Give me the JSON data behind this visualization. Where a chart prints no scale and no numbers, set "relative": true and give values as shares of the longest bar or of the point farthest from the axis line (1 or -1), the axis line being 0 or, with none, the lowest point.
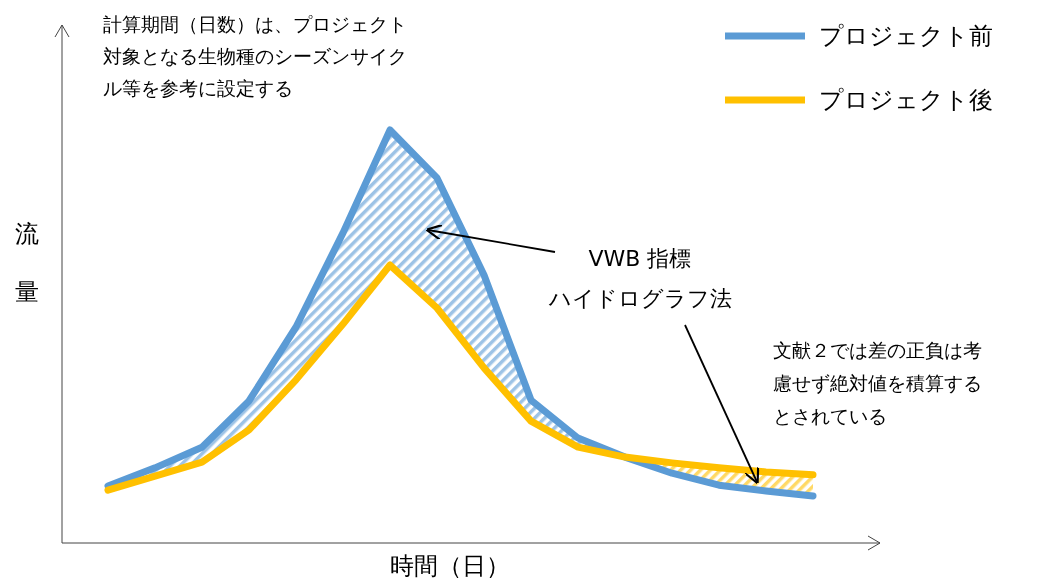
{
  "chart_data": {
    "type": "line",
    "relative": true,
    "xlabel": "時間（日）",
    "ylabel": "流量",
    "legend": "top right",
    "line_style": "solid",
    "marker": "none",
    "grid": false,
    "tick_labels": false,
    "categories": [
      null,
      null,
      null,
      null,
      null,
      null,
      null,
      null,
      null,
      null,
      null,
      null,
      null,
      null,
      null,
      null
    ],
    "series": [
      {
        "name": "プロジェクト前",
        "color": "#5b9bd5",
        "values": [
          0.138,
          0.182,
          0.232,
          0.344,
          0.523,
          0.751,
          1,
          0.884,
          0.649,
          0.346,
          0.254,
          0.208,
          0.169,
          0.14,
          0.126,
          0.114
        ],
        "lower": [
          0.128,
          0.162,
          0.196,
          0.274,
          0.395,
          0.53,
          0.673,
          0.569,
          0.424,
          0.295,
          0.232,
          0.208,
          null,
          null,
          null,
          null
        ],
        "upper": [
          0.138,
          0.182,
          0.232,
          0.344,
          0.523,
          0.751,
          1,
          0.884,
          0.649,
          0.346,
          0.254,
          0.208,
          null,
          null,
          null,
          null
        ]
      },
      {
        "name": "プロジェクト後",
        "color": "#ffc000",
        "values": [
          0.128,
          0.162,
          0.196,
          0.274,
          0.395,
          0.53,
          0.673,
          0.569,
          0.424,
          0.295,
          0.232,
          0.208,
          0.194,
          0.182,
          0.172,
          0.165
        ],
        "lower": [
          null,
          null,
          null,
          null,
          null,
          null,
          null,
          null,
          null,
          null,
          null,
          0.208,
          0.169,
          0.14,
          0.126,
          0.114
        ],
        "upper": [
          null,
          null,
          null,
          null,
          null,
          null,
          null,
          null,
          null,
          null,
          null,
          0.208,
          0.194,
          0.182,
          0.172,
          0.165
        ]
      }
    ],
    "annotations": [
      "計算期間（日数）は、プロジェクト対象となる生物種のシーズンサイクル等を参考に設定する",
      "VWB 指標ハイドログラフ法",
      "文献２では差の正負は考慮せず絶対値を積算するとされている"
    ]
  }
}
